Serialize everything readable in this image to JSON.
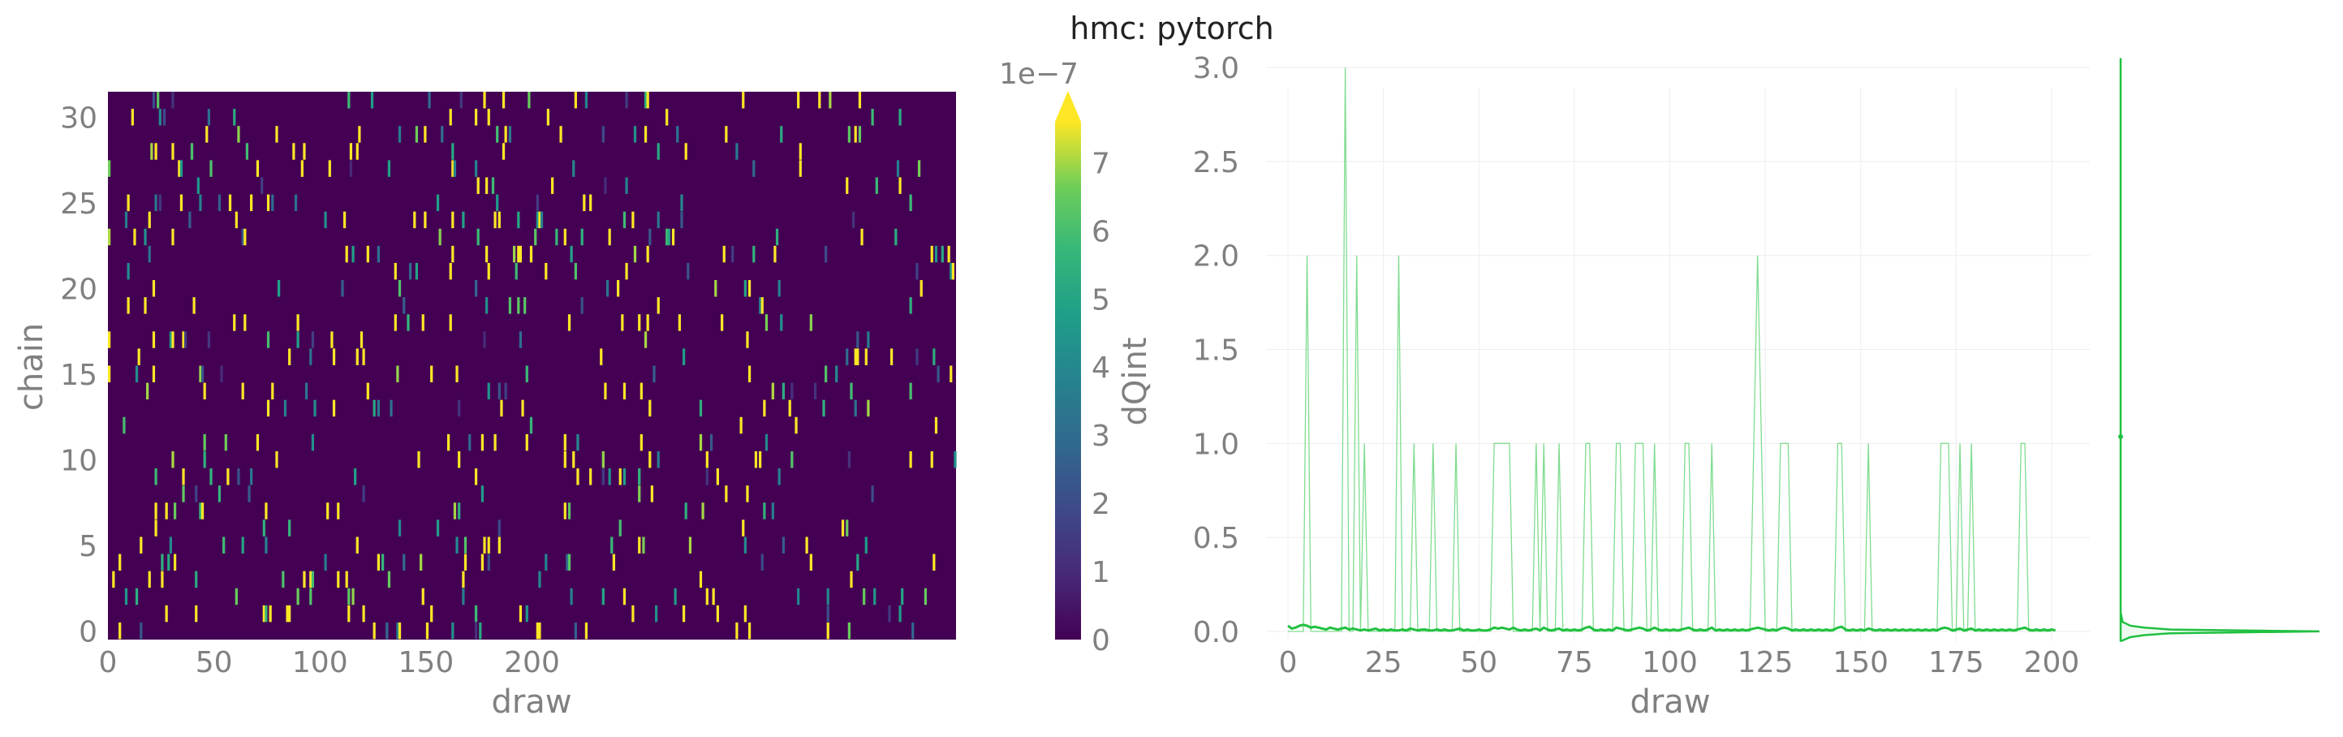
{
  "figure": {
    "title": "hmc: pytorch",
    "colors": {
      "axis_text": "#808080",
      "title_text": "#222222",
      "grid": "#eeeeee",
      "line": "#20c040",
      "line_light": "#7fdc8f"
    }
  },
  "chart_data": [
    {
      "type": "heatmap",
      "title": "",
      "xlabel": "draw",
      "ylabel": "chain",
      "x_range": [
        0,
        400
      ],
      "y_range": [
        0,
        32
      ],
      "x_ticks": [
        "0",
        "50",
        "100",
        "150",
        "200"
      ],
      "y_ticks": [
        "0",
        "5",
        "10",
        "15",
        "20",
        "25",
        "30"
      ],
      "colormap": "viridis",
      "background_value": 0,
      "seed": 4242,
      "approx_nonzero_fraction": 0.035,
      "colorbar": {
        "label": "dQint",
        "multiplier_label": "1e−7",
        "range": [
          0,
          7.6
        ],
        "ticks": [
          "0",
          "1",
          "2",
          "3",
          "4",
          "5",
          "6",
          "7"
        ],
        "extend": "max"
      }
    },
    {
      "type": "line",
      "title": "",
      "xlabel": "draw",
      "ylabel": "",
      "x_range": [
        -10,
        210
      ],
      "y_range": [
        -0.13,
        3.1
      ],
      "x_ticks": [
        "0",
        "25",
        "50",
        "75",
        "100",
        "125",
        "150",
        "175",
        "200"
      ],
      "y_ticks": [
        "0.0",
        "0.5",
        "1.0",
        "1.5",
        "2.0",
        "2.5",
        "3.0"
      ],
      "grid": true,
      "series": [
        {
          "role": "max",
          "values": [
            0,
            0,
            0,
            0,
            0,
            2,
            0,
            0,
            0,
            0,
            0,
            0,
            0,
            0,
            0,
            3,
            0,
            0,
            2,
            0,
            1,
            0,
            0,
            0,
            0,
            0,
            0,
            0,
            0,
            2,
            0,
            0,
            0,
            1,
            0,
            0,
            0,
            0,
            1,
            0,
            0,
            0,
            0,
            0,
            1,
            0,
            0,
            0,
            0,
            0,
            0,
            0,
            0,
            0,
            1,
            1,
            1,
            1,
            1,
            0,
            0,
            0,
            0,
            0,
            0,
            1,
            0,
            1,
            0,
            0,
            0,
            1,
            0,
            0,
            0,
            0,
            0,
            0,
            1,
            1,
            0,
            0,
            0,
            0,
            0,
            0,
            1,
            1,
            0,
            0,
            0,
            1,
            1,
            1,
            0,
            0,
            1,
            0,
            0,
            0,
            0,
            0,
            0,
            0,
            1,
            1,
            0,
            0,
            0,
            0,
            0,
            1,
            0,
            0,
            0,
            0,
            0,
            0,
            0,
            0,
            0,
            0,
            1,
            2,
            1,
            0,
            0,
            0,
            0,
            1,
            1,
            1,
            0,
            0,
            0,
            0,
            0,
            0,
            0,
            0,
            0,
            0,
            0,
            0,
            1,
            1,
            0,
            0,
            0,
            0,
            0,
            0,
            1,
            0,
            0,
            0,
            0,
            0,
            0,
            0,
            0,
            0,
            0,
            0,
            0,
            0,
            0,
            0,
            0,
            0,
            0,
            1,
            1,
            1,
            0,
            0,
            1,
            0,
            0,
            1,
            0,
            0,
            0,
            0,
            0,
            0,
            0,
            0,
            0,
            0,
            0,
            0,
            1,
            1,
            0,
            0,
            0,
            0,
            0,
            0,
            0
          ]
        },
        {
          "role": "mean",
          "values": [
            0.03,
            0.015,
            0.02,
            0.03,
            0.035,
            0.03,
            0.02,
            0.025,
            0.02,
            0.015,
            0.01,
            0.02,
            0.015,
            0.01,
            0.015,
            0.02,
            0.01,
            0.015,
            0.01,
            0.005,
            0.01,
            0.005,
            0.01,
            0.015,
            0.005,
            0.01,
            0.005,
            0.01,
            0.005,
            0.005,
            0.01,
            0.005,
            0.015,
            0.01,
            0.005,
            0.01,
            0.01,
            0.005,
            0.005,
            0.01,
            0.005,
            0.01,
            0.005,
            0.005,
            0.01,
            0.015,
            0.005,
            0.01,
            0.005,
            0.005,
            0.01,
            0.005,
            0.005,
            0.01,
            0.02,
            0.015,
            0.02,
            0.015,
            0.01,
            0.02,
            0.01,
            0.005,
            0.01,
            0.005,
            0.01,
            0.015,
            0.005,
            0.02,
            0.01,
            0.005,
            0.01,
            0.015,
            0.005,
            0.01,
            0.005,
            0.01,
            0.005,
            0.01,
            0.02,
            0.025,
            0.01,
            0.005,
            0.01,
            0.005,
            0.01,
            0.005,
            0.02,
            0.015,
            0.01,
            0.005,
            0.01,
            0.015,
            0.02,
            0.015,
            0.005,
            0.01,
            0.02,
            0.01,
            0.005,
            0.01,
            0.005,
            0.01,
            0.005,
            0.01,
            0.015,
            0.02,
            0.01,
            0.005,
            0.01,
            0.005,
            0.01,
            0.02,
            0.005,
            0.01,
            0.005,
            0.01,
            0.005,
            0.01,
            0.005,
            0.01,
            0.005,
            0.01,
            0.015,
            0.02,
            0.015,
            0.01,
            0.005,
            0.01,
            0.005,
            0.015,
            0.02,
            0.015,
            0.005,
            0.01,
            0.005,
            0.01,
            0.005,
            0.01,
            0.005,
            0.01,
            0.005,
            0.01,
            0.005,
            0.01,
            0.02,
            0.025,
            0.01,
            0.005,
            0.01,
            0.005,
            0.01,
            0.005,
            0.015,
            0.01,
            0.005,
            0.01,
            0.005,
            0.01,
            0.005,
            0.01,
            0.005,
            0.01,
            0.005,
            0.01,
            0.005,
            0.01,
            0.005,
            0.01,
            0.005,
            0.01,
            0.005,
            0.015,
            0.02,
            0.015,
            0.005,
            0.01,
            0.015,
            0.005,
            0.01,
            0.015,
            0.005,
            0.01,
            0.005,
            0.01,
            0.005,
            0.01,
            0.005,
            0.01,
            0.005,
            0.01,
            0.005,
            0.01,
            0.015,
            0.02,
            0.01,
            0.005,
            0.01,
            0.005,
            0.01,
            0.005,
            0.01,
            0.005
          ]
        }
      ],
      "marginal_kde": {
        "orientation": "horizontal",
        "peak_at": 0.0,
        "points": [
          [
            -0.05,
            0.005
          ],
          [
            -0.03,
            0.05
          ],
          [
            -0.02,
            0.12
          ],
          [
            -0.01,
            0.25
          ],
          [
            0.0,
            1.0
          ],
          [
            0.01,
            0.25
          ],
          [
            0.02,
            0.12
          ],
          [
            0.03,
            0.05
          ],
          [
            0.05,
            0.01
          ],
          [
            0.1,
            0.0
          ],
          [
            1.0,
            0.0
          ],
          [
            3.05,
            0.0
          ]
        ]
      }
    }
  ]
}
